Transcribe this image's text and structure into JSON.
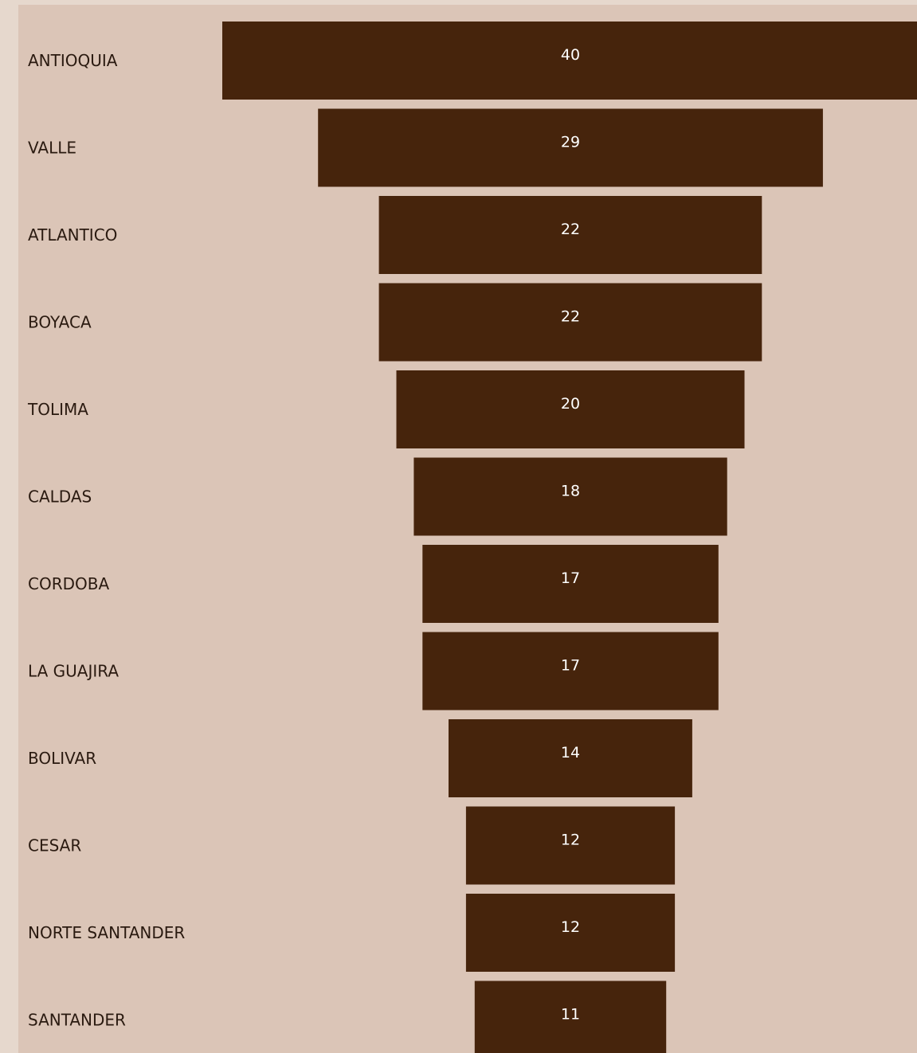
{
  "colors": {
    "page_background": "#e6d8cd",
    "panel_background": "#dbc5b7",
    "bar": "#46240c",
    "category_text": "#2a1a10",
    "value_text": "#ffffff"
  },
  "chart_data": {
    "type": "bar",
    "orientation": "horizontal",
    "style": "funnel (bars centered)",
    "categories": [
      "ANTIOQUIA",
      "VALLE",
      "ATLANTICO",
      "BOYACA",
      "TOLIMA",
      "CALDAS",
      "CORDOBA",
      "LA GUAJIRA",
      "BOLIVAR",
      "CESAR",
      "NORTE SANTANDER",
      "SANTANDER"
    ],
    "values": [
      40,
      29,
      22,
      22,
      20,
      18,
      17,
      17,
      14,
      12,
      12,
      11
    ],
    "title": "",
    "xlabel": "",
    "ylabel": "",
    "grid": false,
    "legend": "none",
    "data_labels": "inside bars"
  }
}
